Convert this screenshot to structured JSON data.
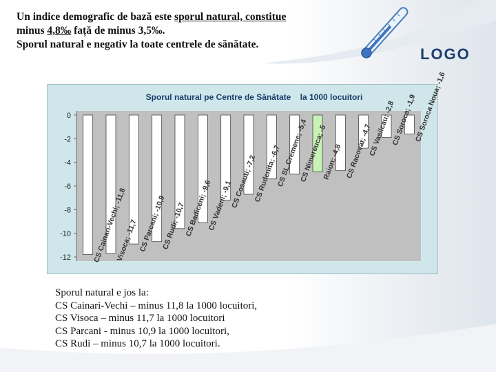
{
  "heading": {
    "line1_pre": "Un indice demografic de bază este ",
    "line1_underlined": "sporul natural, constitue ",
    "line2_pre": "minus ",
    "line2_underlined": " 4,8‰",
    "line2_post": " față de  minus 3,5‰.",
    "line3": "Sporul natural  e negativ la toate centrele de sănătate."
  },
  "logo": "LOGO",
  "colors": {
    "bar_primary": "#ffffff",
    "bar_highlight": "#c9f2b6",
    "plot_bg": "#c0c0c0",
    "chart_bg": "#cfe7ea",
    "title_color": "#1b3f6e"
  },
  "chart_data": {
    "type": "bar",
    "title": "Sporul natural pe Centre de Sănătate    la 1000 locuitori",
    "ylim": [
      -12,
      0
    ],
    "yticks": [
      "0",
      "-2",
      "-4",
      "-6",
      "-8",
      "-10",
      "-12"
    ],
    "categories": [
      "CS Cainari-Vechi",
      "CS Visoca",
      "CS Parcani",
      "CS Rudi",
      "CS Badiceni",
      "CS Vadeni",
      "CS Cosauti",
      "CS Rudenita",
      "CS SL.Cremene",
      "CS Nimereuca",
      "Raion",
      "CS Racovat",
      "CS Vasilcau",
      "CS Soroca",
      "CS Soroca Noua"
    ],
    "values": [
      -11.8,
      -11.7,
      -10.9,
      -10.7,
      -9.6,
      -9.1,
      -7.2,
      -6.7,
      -5.4,
      -5,
      -4.8,
      -4.7,
      -2.8,
      -1.9,
      -1.6
    ],
    "data_labels": [
      "CS Cainari-Vechi; -11,8",
      "Visoca; -11,7",
      "CS Parcani; -10,9",
      "CS Rudi; -10,7",
      "CS Badiceni; -9,6",
      "CS Vadeni; -9,1",
      "CS Cosauti; -7,2",
      "CS Rudenita; -6,7",
      "CS SL.Cremene; -5,4",
      "CS Nimereuca; -5",
      "Raion; -4,8",
      "CS Racovat; -4,7",
      "CS Vasilcau; -2,8",
      "CS Soroca; -1,9",
      "CS Soroca Noua; -1,6"
    ],
    "highlight_index": 10,
    "grid": false,
    "legend": "none"
  },
  "notes": [
    "Sporul natural  e jos la:",
    "CS Cainari-Vechi – minus 11,8 la 1000 locuitori,",
    "CS Visoca – minus 11,7 la 1000 locuitori",
    "CS Parcani -  minus 10,9 la 1000 locuitori,",
    "CS Rudi – minus 10,7 la 1000 locuitori."
  ]
}
